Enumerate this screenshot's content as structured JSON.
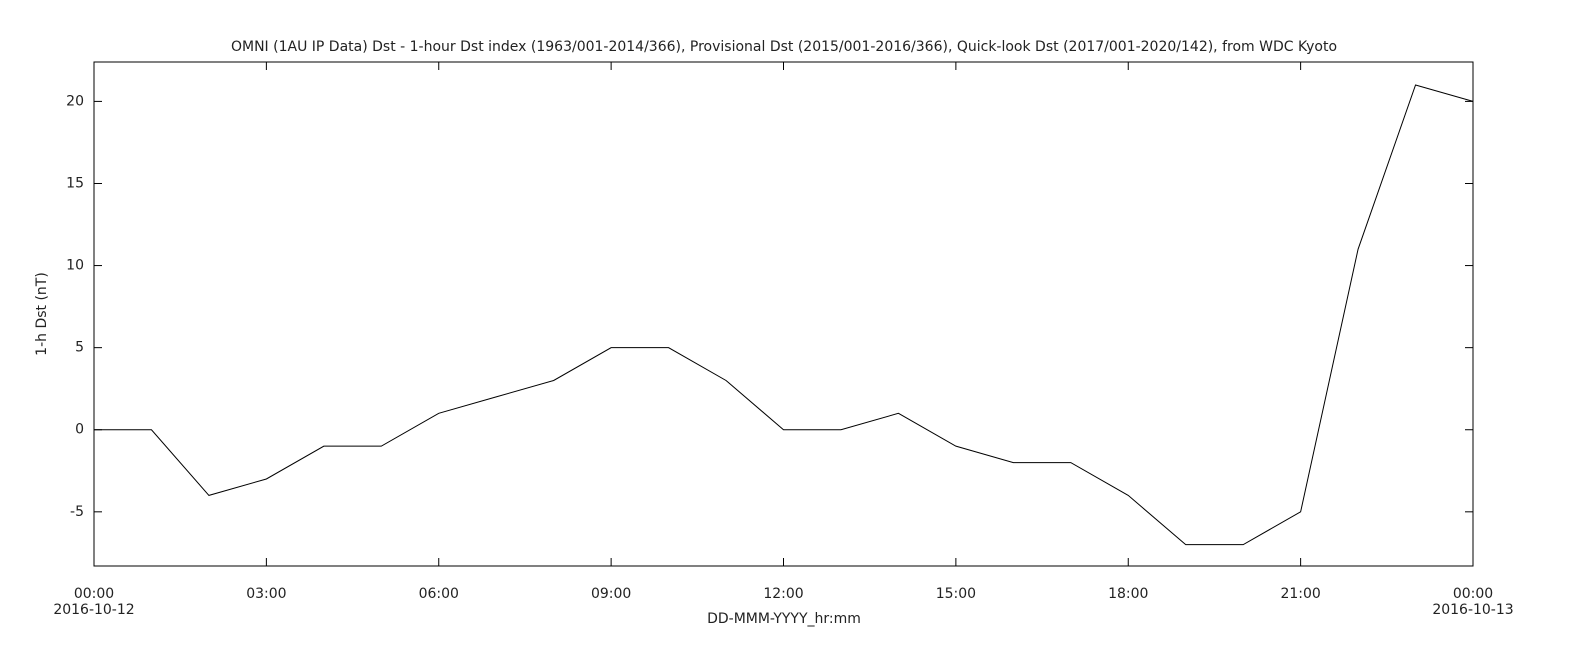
{
  "chart_data": {
    "type": "line",
    "title": "OMNI (1AU IP Data)  Dst - 1-hour Dst index (1963/001-2014/366), Provisional Dst (2015/001-2016/366), Quick-look Dst (2017/001-2020/142), from WDC Kyoto",
    "x_label": "DD-MMM-YYYY_hr:mm",
    "y_label": "1-h Dst (nT)",
    "x": [
      0,
      1,
      2,
      3,
      4,
      5,
      6,
      7,
      8,
      9,
      10,
      11,
      12,
      13,
      14,
      15,
      16,
      17,
      18,
      19,
      20,
      21,
      22,
      23,
      24
    ],
    "series": [
      {
        "name": "1-h Dst",
        "color": "#000000",
        "values": [
          0,
          0,
          -4,
          -3,
          -1,
          -1,
          1,
          2,
          3,
          5,
          5,
          3,
          0,
          0,
          1,
          -1,
          -2,
          -2,
          -4,
          -7,
          -7,
          -5,
          11,
          21,
          20
        ]
      }
    ],
    "xlim": [
      0,
      24
    ],
    "xticks": [
      {
        "value": 0,
        "label": "00:00"
      },
      {
        "value": 3,
        "label": "03:00"
      },
      {
        "value": 6,
        "label": "06:00"
      },
      {
        "value": 9,
        "label": "09:00"
      },
      {
        "value": 12,
        "label": "12:00"
      },
      {
        "value": 15,
        "label": "15:00"
      },
      {
        "value": 18,
        "label": "18:00"
      },
      {
        "value": 21,
        "label": "21:00"
      },
      {
        "value": 24,
        "label": "00:00"
      }
    ],
    "date_labels": [
      {
        "value": 0,
        "label": "2016-10-12"
      },
      {
        "value": 24,
        "label": "2016-10-13"
      }
    ],
    "ylim": [
      -8.3,
      22.4
    ],
    "yticks": [
      -5,
      0,
      5,
      10,
      15,
      20
    ],
    "grid": false
  }
}
